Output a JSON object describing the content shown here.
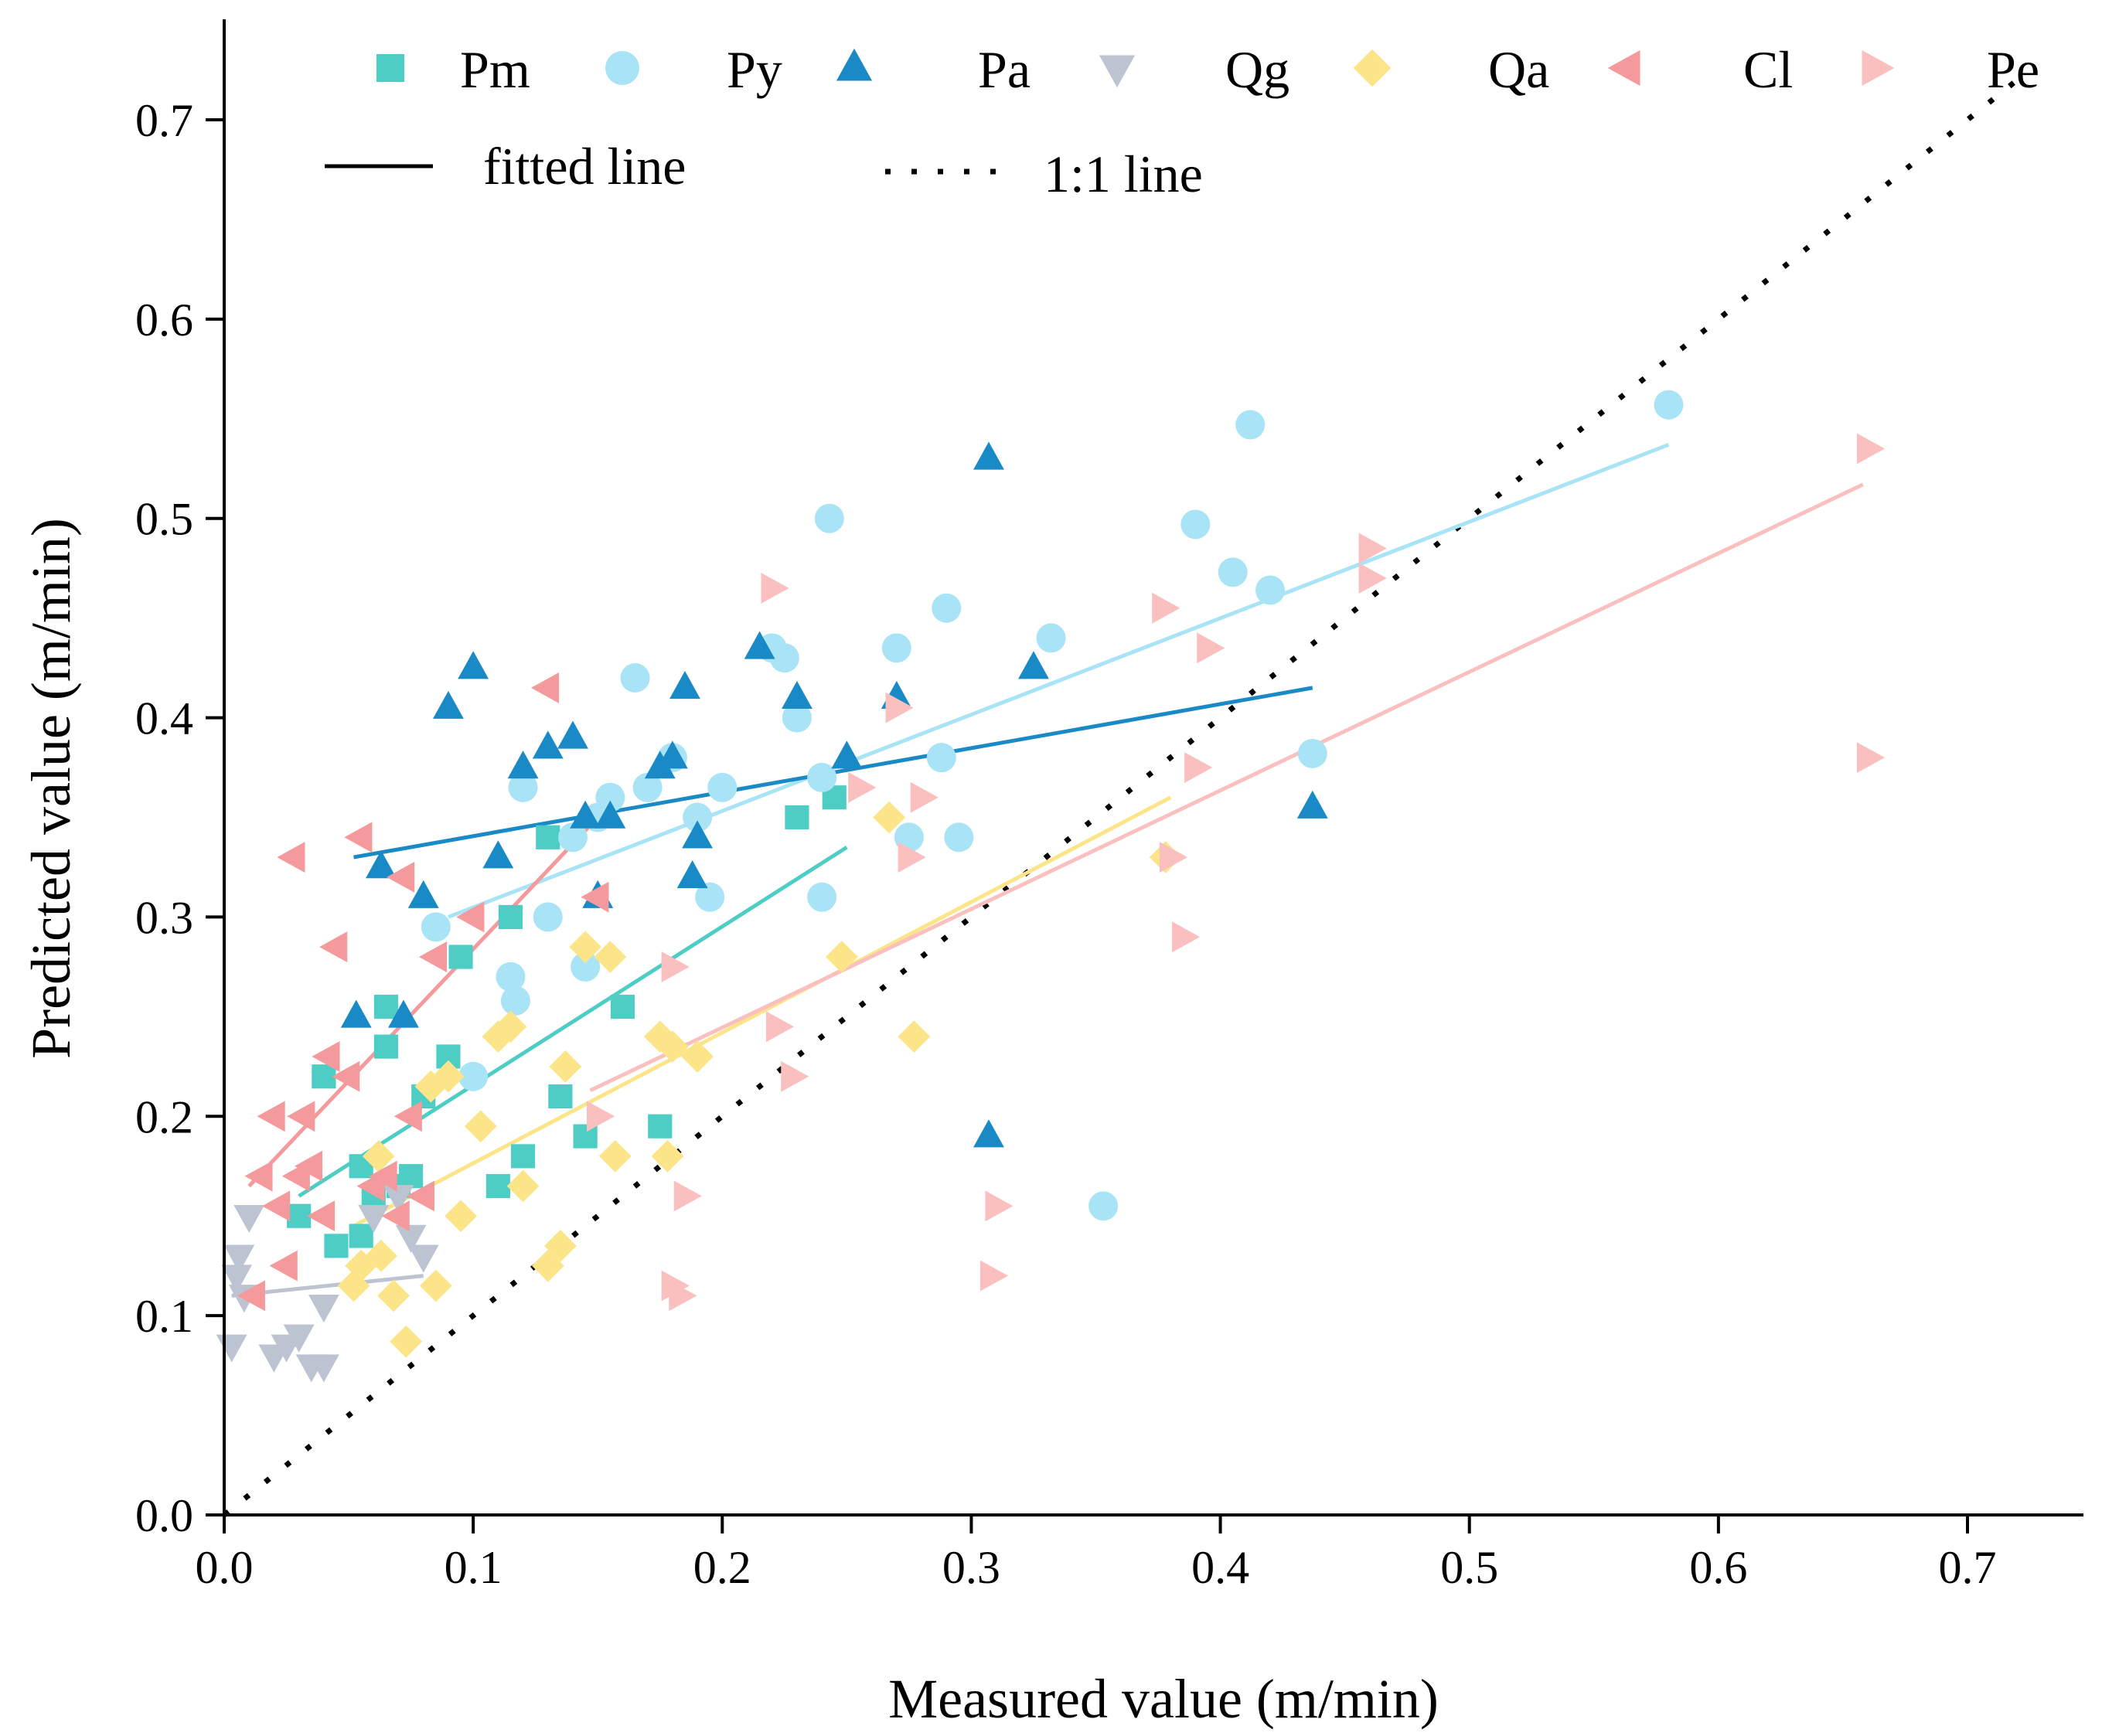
{
  "chart_data": {
    "type": "scatter",
    "title": "",
    "xlabel": "Measured value (m/min)",
    "ylabel": "Predicted value (m/min)",
    "xlim": [
      0,
      0.75
    ],
    "ylim": [
      0,
      0.75
    ],
    "xticks": [
      0.0,
      0.1,
      0.2,
      0.3,
      0.4,
      0.5,
      0.6,
      0.7
    ],
    "yticks": [
      0.0,
      0.1,
      0.2,
      0.3,
      0.4,
      0.5,
      0.6,
      0.7
    ],
    "xtick_labels": [
      "0.0",
      "0.1",
      "0.2",
      "0.3",
      "0.4",
      "0.5",
      "0.6",
      "0.7"
    ],
    "ytick_labels": [
      "0.0",
      "0.1",
      "0.2",
      "0.3",
      "0.4",
      "0.5",
      "0.6",
      "0.7"
    ],
    "grid": false,
    "legend_position": "top",
    "legend": {
      "fitted_label": "fitted line",
      "oneone_label": "1:1 line"
    },
    "reference_line": {
      "name": "1:1 line",
      "from": [
        0,
        0
      ],
      "to": [
        0.72,
        0.72
      ],
      "color": "#000000"
    },
    "series": [
      {
        "name": "Pm",
        "marker": "square",
        "color": "#4ECDC4",
        "points": [
          [
            0.03,
            0.15
          ],
          [
            0.04,
            0.22
          ],
          [
            0.045,
            0.135
          ],
          [
            0.055,
            0.14
          ],
          [
            0.055,
            0.175
          ],
          [
            0.06,
            0.16
          ],
          [
            0.065,
            0.255
          ],
          [
            0.065,
            0.235
          ],
          [
            0.07,
            0.165
          ],
          [
            0.075,
            0.17
          ],
          [
            0.08,
            0.21
          ],
          [
            0.09,
            0.23
          ],
          [
            0.095,
            0.28
          ],
          [
            0.11,
            0.165
          ],
          [
            0.115,
            0.3
          ],
          [
            0.12,
            0.18
          ],
          [
            0.13,
            0.34
          ],
          [
            0.135,
            0.21
          ],
          [
            0.145,
            0.19
          ],
          [
            0.16,
            0.255
          ],
          [
            0.175,
            0.195
          ],
          [
            0.23,
            0.35
          ],
          [
            0.245,
            0.36
          ]
        ],
        "fit": [
          [
            0.03,
            0.16
          ],
          [
            0.25,
            0.335
          ]
        ]
      },
      {
        "name": "Py",
        "marker": "circle",
        "color": "#A8E4F5",
        "points": [
          [
            0.085,
            0.295
          ],
          [
            0.1,
            0.22
          ],
          [
            0.115,
            0.27
          ],
          [
            0.117,
            0.258
          ],
          [
            0.12,
            0.365
          ],
          [
            0.13,
            0.3
          ],
          [
            0.14,
            0.34
          ],
          [
            0.145,
            0.275
          ],
          [
            0.15,
            0.35
          ],
          [
            0.155,
            0.36
          ],
          [
            0.165,
            0.42
          ],
          [
            0.17,
            0.365
          ],
          [
            0.18,
            0.38
          ],
          [
            0.19,
            0.35
          ],
          [
            0.195,
            0.31
          ],
          [
            0.2,
            0.365
          ],
          [
            0.22,
            0.435
          ],
          [
            0.225,
            0.43
          ],
          [
            0.23,
            0.4
          ],
          [
            0.24,
            0.37
          ],
          [
            0.24,
            0.31
          ],
          [
            0.243,
            0.5
          ],
          [
            0.27,
            0.435
          ],
          [
            0.275,
            0.34
          ],
          [
            0.288,
            0.38
          ],
          [
            0.29,
            0.455
          ],
          [
            0.295,
            0.34
          ],
          [
            0.332,
            0.44
          ],
          [
            0.353,
            0.155
          ],
          [
            0.39,
            0.497
          ],
          [
            0.405,
            0.473
          ],
          [
            0.412,
            0.547
          ],
          [
            0.42,
            0.464
          ],
          [
            0.437,
            0.382
          ],
          [
            0.58,
            0.557
          ]
        ],
        "fit": [
          [
            0.09,
            0.3
          ],
          [
            0.58,
            0.537
          ]
        ]
      },
      {
        "name": "Pa",
        "marker": "triangle-up",
        "color": "#1A8AC7",
        "points": [
          [
            0.053,
            0.25
          ],
          [
            0.063,
            0.325
          ],
          [
            0.072,
            0.25
          ],
          [
            0.08,
            0.31
          ],
          [
            0.09,
            0.405
          ],
          [
            0.1,
            0.425
          ],
          [
            0.11,
            0.33
          ],
          [
            0.12,
            0.375
          ],
          [
            0.13,
            0.385
          ],
          [
            0.14,
            0.39
          ],
          [
            0.145,
            0.35
          ],
          [
            0.15,
            0.31
          ],
          [
            0.155,
            0.35
          ],
          [
            0.175,
            0.375
          ],
          [
            0.18,
            0.38
          ],
          [
            0.185,
            0.415
          ],
          [
            0.188,
            0.32
          ],
          [
            0.19,
            0.34
          ],
          [
            0.215,
            0.435
          ],
          [
            0.23,
            0.41
          ],
          [
            0.25,
            0.38
          ],
          [
            0.27,
            0.41
          ],
          [
            0.307,
            0.19
          ],
          [
            0.307,
            0.53
          ],
          [
            0.325,
            0.425
          ],
          [
            0.437,
            0.355
          ]
        ],
        "fit": [
          [
            0.052,
            0.33
          ],
          [
            0.437,
            0.415
          ]
        ]
      },
      {
        "name": "Qg",
        "marker": "triangle-down",
        "color": "#BCC3D1",
        "points": [
          [
            0.003,
            0.085
          ],
          [
            0.005,
            0.12
          ],
          [
            0.006,
            0.13
          ],
          [
            0.008,
            0.11
          ],
          [
            0.01,
            0.15
          ],
          [
            0.02,
            0.08
          ],
          [
            0.025,
            0.085
          ],
          [
            0.03,
            0.09
          ],
          [
            0.035,
            0.075
          ],
          [
            0.04,
            0.075
          ],
          [
            0.04,
            0.105
          ],
          [
            0.06,
            0.15
          ],
          [
            0.07,
            0.16
          ],
          [
            0.075,
            0.14
          ],
          [
            0.08,
            0.13
          ]
        ],
        "fit": [
          [
            0.003,
            0.11
          ],
          [
            0.08,
            0.12
          ]
        ]
      },
      {
        "name": "Qa",
        "marker": "diamond",
        "color": "#FCE589",
        "points": [
          [
            0.052,
            0.115
          ],
          [
            0.055,
            0.125
          ],
          [
            0.062,
            0.18
          ],
          [
            0.063,
            0.13
          ],
          [
            0.068,
            0.11
          ],
          [
            0.073,
            0.087
          ],
          [
            0.083,
            0.215
          ],
          [
            0.085,
            0.115
          ],
          [
            0.09,
            0.22
          ],
          [
            0.095,
            0.15
          ],
          [
            0.103,
            0.195
          ],
          [
            0.11,
            0.24
          ],
          [
            0.115,
            0.245
          ],
          [
            0.12,
            0.165
          ],
          [
            0.13,
            0.125
          ],
          [
            0.135,
            0.135
          ],
          [
            0.137,
            0.225
          ],
          [
            0.145,
            0.285
          ],
          [
            0.155,
            0.28
          ],
          [
            0.157,
            0.18
          ],
          [
            0.175,
            0.24
          ],
          [
            0.178,
            0.18
          ],
          [
            0.18,
            0.235
          ],
          [
            0.19,
            0.23
          ],
          [
            0.248,
            0.28
          ],
          [
            0.267,
            0.35
          ],
          [
            0.277,
            0.24
          ],
          [
            0.378,
            0.33
          ]
        ],
        "fit": [
          [
            0.052,
            0.145
          ],
          [
            0.38,
            0.36
          ]
        ]
      },
      {
        "name": "Cl",
        "marker": "triangle-left",
        "color": "#F59A9C",
        "points": [
          [
            0.012,
            0.11
          ],
          [
            0.015,
            0.17
          ],
          [
            0.02,
            0.2
          ],
          [
            0.022,
            0.155
          ],
          [
            0.025,
            0.125
          ],
          [
            0.028,
            0.33
          ],
          [
            0.03,
            0.17
          ],
          [
            0.032,
            0.2
          ],
          [
            0.035,
            0.175
          ],
          [
            0.04,
            0.15
          ],
          [
            0.042,
            0.23
          ],
          [
            0.045,
            0.285
          ],
          [
            0.05,
            0.22
          ],
          [
            0.055,
            0.34
          ],
          [
            0.06,
            0.165
          ],
          [
            0.065,
            0.17
          ],
          [
            0.07,
            0.15
          ],
          [
            0.072,
            0.32
          ],
          [
            0.075,
            0.2
          ],
          [
            0.08,
            0.16
          ],
          [
            0.085,
            0.28
          ],
          [
            0.1,
            0.3
          ],
          [
            0.13,
            0.415
          ],
          [
            0.15,
            0.31
          ]
        ],
        "fit": [
          [
            0.01,
            0.165
          ],
          [
            0.15,
            0.35
          ]
        ]
      },
      {
        "name": "Pe",
        "marker": "triangle-right",
        "color": "#F9C0BF",
        "points": [
          [
            0.15,
            0.2
          ],
          [
            0.18,
            0.115
          ],
          [
            0.18,
            0.275
          ],
          [
            0.183,
            0.11
          ],
          [
            0.185,
            0.16
          ],
          [
            0.22,
            0.465
          ],
          [
            0.222,
            0.245
          ],
          [
            0.228,
            0.22
          ],
          [
            0.255,
            0.365
          ],
          [
            0.27,
            0.405
          ],
          [
            0.275,
            0.33
          ],
          [
            0.28,
            0.36
          ],
          [
            0.308,
            0.12
          ],
          [
            0.31,
            0.155
          ],
          [
            0.377,
            0.455
          ],
          [
            0.38,
            0.33
          ],
          [
            0.385,
            0.29
          ],
          [
            0.39,
            0.375
          ],
          [
            0.395,
            0.435
          ],
          [
            0.46,
            0.47
          ],
          [
            0.46,
            0.485
          ],
          [
            0.66,
            0.38
          ],
          [
            0.66,
            0.535
          ]
        ],
        "fit": [
          [
            0.147,
            0.213
          ],
          [
            0.658,
            0.517
          ]
        ]
      }
    ]
  }
}
